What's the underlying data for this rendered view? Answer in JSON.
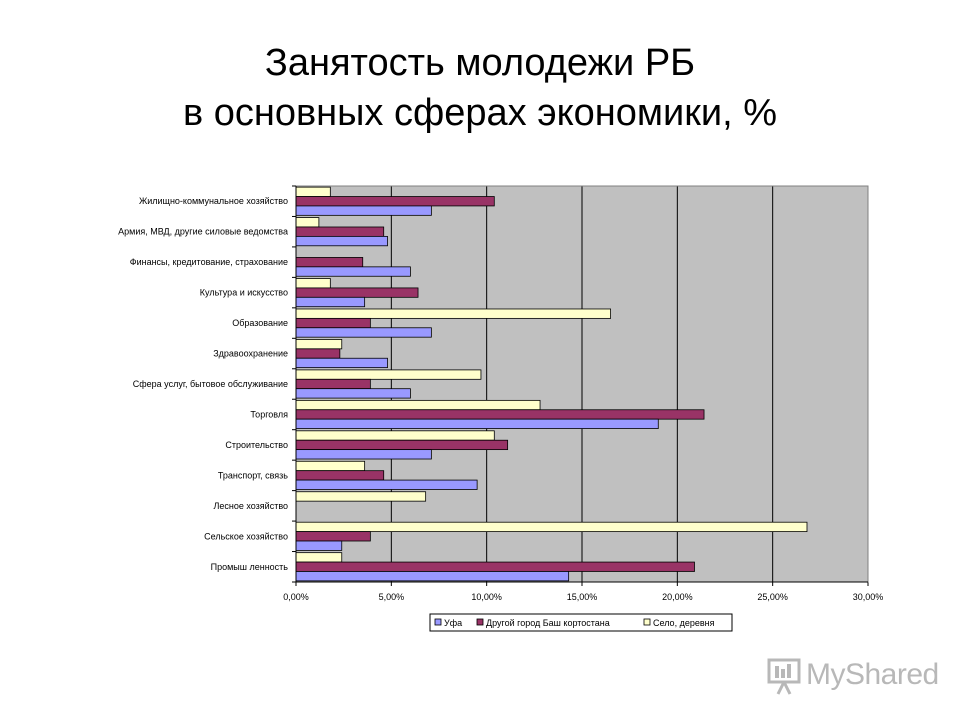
{
  "title": {
    "line1": "Занятость молодежи РБ",
    "line2": "в основных сферах экономики, %"
  },
  "watermark": {
    "text": "MyShared",
    "icon": "presentation-board-icon"
  },
  "chart_data": {
    "type": "bar",
    "orientation": "horizontal",
    "categories": [
      "Жилищно-коммунальное хозяйство",
      "Армия, МВД, другие силовые ведомства",
      "Финансы, кредитование, страхование",
      "Культура и искусство",
      "Образование",
      "Здравоохранение",
      "Сфера услуг, бытовое обслуживание",
      "Торговля",
      "Строительство",
      "Транспорт, связь",
      "Лесное хозяйство",
      "Сельское хозяйство",
      "Промыш ленность"
    ],
    "series": [
      {
        "name": "Уфа",
        "color": "#9999ff",
        "values": [
          7.1,
          4.8,
          6.0,
          3.6,
          7.1,
          4.8,
          6.0,
          19.0,
          7.1,
          9.5,
          0.0,
          2.4,
          14.3
        ]
      },
      {
        "name": "Другой город Баш кортостана",
        "color": "#993366",
        "values": [
          10.4,
          4.6,
          3.5,
          6.4,
          3.9,
          2.3,
          3.9,
          21.4,
          11.1,
          4.6,
          0.0,
          3.9,
          20.9
        ]
      },
      {
        "name": "Село, деревня",
        "color": "#ffffcc",
        "values": [
          1.8,
          1.2,
          0.0,
          1.8,
          16.5,
          2.4,
          9.7,
          12.8,
          10.4,
          3.6,
          6.8,
          26.8,
          2.4
        ]
      }
    ],
    "xlim": [
      0,
      30
    ],
    "xticks": [
      "0,00%",
      "5,00%",
      "10,00%",
      "15,00%",
      "20,00%",
      "25,00%",
      "30,00%"
    ],
    "plot_background": "#c0c0c0",
    "grid": true,
    "legend": "bottom"
  }
}
